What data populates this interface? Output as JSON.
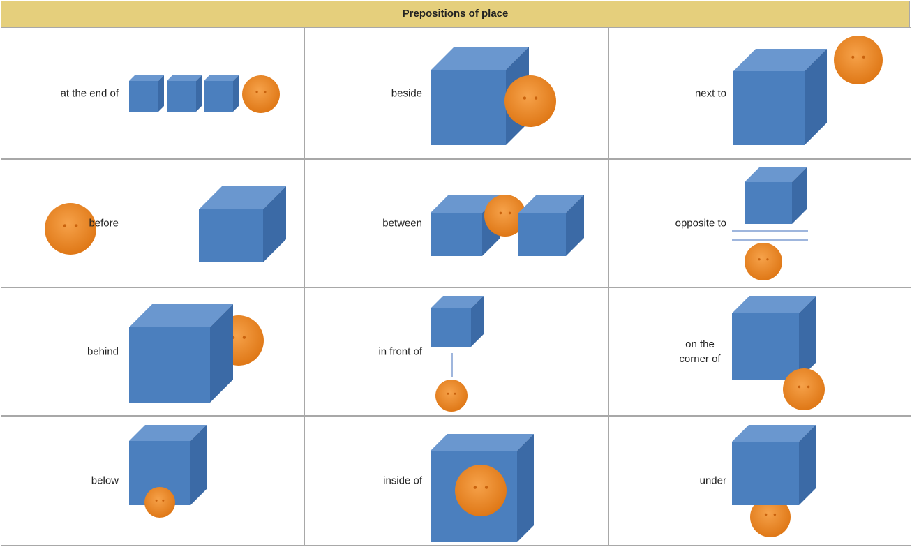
{
  "header": {
    "title": "Prepositions of place"
  },
  "table": {
    "rows": [
      [
        "at the end of",
        "beside",
        "next to"
      ],
      [
        "before",
        "between",
        "opposite to"
      ],
      [
        "behind",
        "in front of",
        "on the corner of"
      ],
      [
        "below",
        "inside of",
        "under"
      ]
    ]
  }
}
